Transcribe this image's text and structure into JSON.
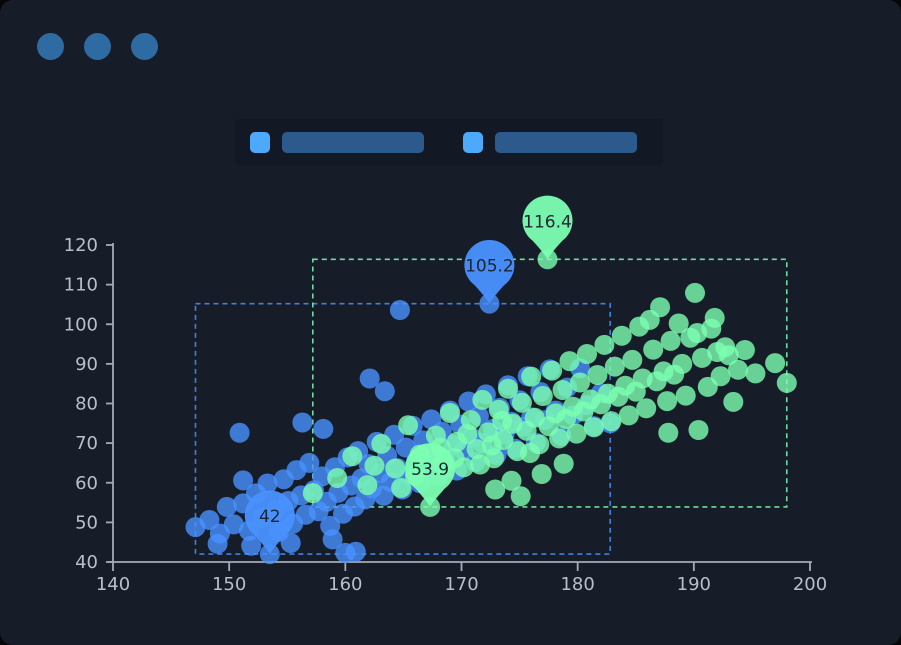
{
  "window": {
    "background": "#171d28",
    "dot_color": "#2f6ba3",
    "dot_count": 3
  },
  "legend": {
    "items": [
      {
        "name": "legend-item-1",
        "swatch_color": "#4da9fc",
        "bar_color": "#2d5a8c"
      },
      {
        "name": "legend-item-2",
        "swatch_color": "#4da9fc",
        "bar_color": "#2d5a8c"
      }
    ]
  },
  "chart_data": {
    "type": "scatter",
    "title": "",
    "xlabel": "",
    "ylabel": "",
    "xlim": [
      140,
      200
    ],
    "ylim": [
      40,
      120
    ],
    "x_ticks": [
      140,
      150,
      160,
      170,
      180,
      190,
      200
    ],
    "y_ticks": [
      40,
      50,
      60,
      70,
      80,
      90,
      100,
      110,
      120
    ],
    "grid": false,
    "legend_position": "top",
    "axis_color": "#a5abb6",
    "tick_label_color": "#b9bfca",
    "pin_label_color": "#1b2534",
    "series": [
      {
        "name": "series-1",
        "color": "#4992ff",
        "bounding_box_dashed": true,
        "marks": [
          {
            "type": "max",
            "label": "105.2",
            "x": 172.4,
            "y": 105.2
          },
          {
            "type": "min",
            "label": "42",
            "x": 153.5,
            "y": 42
          }
        ],
        "points": [
          [
            147.1,
            48.8
          ],
          [
            148.3,
            50.6
          ],
          [
            149.0,
            44.6
          ],
          [
            149.2,
            47.2
          ],
          [
            149.8,
            53.9
          ],
          [
            150.4,
            49.5
          ],
          [
            150.9,
            72.6
          ],
          [
            151.2,
            54.8
          ],
          [
            151.2,
            60.6
          ],
          [
            151.7,
            47.9
          ],
          [
            151.9,
            44.1
          ],
          [
            152.3,
            57.3
          ],
          [
            152.9,
            51.2
          ],
          [
            153.3,
            59.8
          ],
          [
            153.5,
            42.0
          ],
          [
            154.0,
            53.1
          ],
          [
            154.3,
            47.6
          ],
          [
            154.7,
            60.9
          ],
          [
            155.1,
            55.4
          ],
          [
            155.3,
            44.8
          ],
          [
            155.5,
            49.7
          ],
          [
            155.8,
            63.2
          ],
          [
            156.2,
            56.8
          ],
          [
            156.3,
            75.2
          ],
          [
            156.6,
            51.9
          ],
          [
            156.9,
            65.0
          ],
          [
            157.3,
            58.1
          ],
          [
            157.7,
            52.8
          ],
          [
            158.0,
            61.6
          ],
          [
            158.1,
            73.6
          ],
          [
            158.4,
            55.2
          ],
          [
            158.7,
            49.1
          ],
          [
            158.9,
            45.7
          ],
          [
            159.1,
            63.9
          ],
          [
            159.4,
            57.5
          ],
          [
            159.8,
            52.2
          ],
          [
            160.0,
            42.3
          ],
          [
            160.2,
            66.4
          ],
          [
            160.5,
            59.3
          ],
          [
            160.8,
            54.0
          ],
          [
            160.9,
            42.6
          ],
          [
            161.1,
            68.0
          ],
          [
            161.4,
            61.1
          ],
          [
            161.7,
            55.8
          ],
          [
            162.0,
            64.7
          ],
          [
            162.1,
            86.3
          ],
          [
            162.3,
            58.6
          ],
          [
            162.7,
            70.3
          ],
          [
            163.0,
            62.4
          ],
          [
            163.3,
            56.7
          ],
          [
            163.4,
            83.1
          ],
          [
            163.6,
            66.8
          ],
          [
            163.9,
            60.2
          ],
          [
            164.2,
            72.1
          ],
          [
            164.5,
            63.7
          ],
          [
            164.7,
            103.6
          ],
          [
            164.9,
            58.3
          ],
          [
            165.2,
            68.9
          ],
          [
            165.5,
            62.0
          ],
          [
            165.8,
            74.4
          ],
          [
            166.1,
            65.5
          ],
          [
            166.4,
            59.9
          ],
          [
            166.7,
            70.7
          ],
          [
            167.0,
            64.1
          ],
          [
            167.4,
            76.0
          ],
          [
            167.7,
            67.3
          ],
          [
            168.0,
            61.5
          ],
          [
            168.3,
            72.9
          ],
          [
            168.6,
            66.0
          ],
          [
            169.0,
            78.2
          ],
          [
            169.3,
            69.6
          ],
          [
            169.6,
            63.1
          ],
          [
            169.9,
            74.7
          ],
          [
            170.2,
            68.1
          ],
          [
            170.6,
            80.5
          ],
          [
            170.9,
            71.4
          ],
          [
            171.2,
            65.2
          ],
          [
            171.5,
            76.8
          ],
          [
            171.8,
            70.0
          ],
          [
            172.1,
            82.3
          ],
          [
            172.4,
            105.2
          ],
          [
            172.7,
            73.6
          ],
          [
            173.0,
            67.0
          ],
          [
            173.3,
            78.9
          ],
          [
            173.7,
            72.2
          ],
          [
            174.0,
            84.6
          ],
          [
            174.3,
            75.4
          ],
          [
            174.6,
            68.6
          ],
          [
            175.0,
            80.8
          ],
          [
            175.3,
            74.1
          ],
          [
            175.7,
            86.9
          ],
          [
            176.0,
            76.5
          ],
          [
            176.4,
            70.1
          ],
          [
            176.8,
            82.9
          ],
          [
            177.2,
            75.8
          ],
          [
            177.6,
            88.6
          ],
          [
            178.1,
            78.2
          ],
          [
            178.6,
            71.9
          ],
          [
            179.1,
            84.0
          ],
          [
            179.6,
            77.0
          ],
          [
            180.2,
            88.9
          ],
          [
            180.8,
            79.6
          ],
          [
            181.4,
            74.3
          ],
          [
            182.0,
            82.6
          ],
          [
            182.8,
            75.0
          ]
        ]
      },
      {
        "name": "series-2",
        "color": "#7cffb2",
        "bounding_box_dashed": true,
        "marks": [
          {
            "type": "max",
            "label": "116.4",
            "x": 177.4,
            "y": 116.4
          },
          {
            "type": "min",
            "label": "53.9",
            "x": 167.3,
            "y": 53.9
          }
        ],
        "points": [
          [
            157.2,
            57.4
          ],
          [
            159.3,
            61.2
          ],
          [
            160.6,
            66.7
          ],
          [
            161.9,
            59.4
          ],
          [
            162.5,
            64.3
          ],
          [
            163.1,
            69.8
          ],
          [
            164.3,
            63.6
          ],
          [
            164.8,
            58.7
          ],
          [
            165.4,
            74.5
          ],
          [
            166.0,
            61.8
          ],
          [
            166.4,
            67.1
          ],
          [
            167.3,
            53.9
          ],
          [
            167.8,
            71.9
          ],
          [
            168.2,
            68.9
          ],
          [
            168.4,
            64.8
          ],
          [
            169.0,
            77.6
          ],
          [
            169.4,
            66.2
          ],
          [
            169.6,
            70.3
          ],
          [
            170.2,
            63.9
          ],
          [
            170.5,
            72.3
          ],
          [
            170.8,
            75.8
          ],
          [
            171.3,
            68.5
          ],
          [
            171.6,
            64.6
          ],
          [
            171.8,
            80.9
          ],
          [
            172.3,
            72.7
          ],
          [
            172.6,
            69.4
          ],
          [
            172.8,
            66.2
          ],
          [
            172.9,
            58.3
          ],
          [
            173.2,
            78.4
          ],
          [
            173.5,
            75.6
          ],
          [
            173.6,
            70.8
          ],
          [
            174.0,
            83.7
          ],
          [
            174.3,
            60.5
          ],
          [
            174.4,
            74.9
          ],
          [
            174.8,
            68.0
          ],
          [
            175.1,
            56.6
          ],
          [
            175.2,
            80.2
          ],
          [
            175.6,
            73.1
          ],
          [
            175.9,
            67.5
          ],
          [
            176.0,
            86.8
          ],
          [
            176.3,
            76.4
          ],
          [
            176.7,
            69.7
          ],
          [
            176.9,
            62.2
          ],
          [
            177.0,
            81.9
          ],
          [
            177.4,
            116.4
          ],
          [
            177.5,
            74.3
          ],
          [
            177.8,
            88.3
          ],
          [
            178.1,
            77.5
          ],
          [
            178.4,
            71.2
          ],
          [
            178.7,
            83.4
          ],
          [
            178.8,
            64.8
          ],
          [
            179.0,
            76.1
          ],
          [
            179.3,
            90.7
          ],
          [
            179.6,
            79.2
          ],
          [
            179.9,
            72.4
          ],
          [
            180.2,
            85.3
          ],
          [
            180.5,
            78.0
          ],
          [
            180.8,
            92.5
          ],
          [
            181.1,
            81.0
          ],
          [
            181.4,
            74.0
          ],
          [
            181.7,
            87.2
          ],
          [
            182.0,
            79.8
          ],
          [
            182.3,
            94.8
          ],
          [
            182.6,
            82.5
          ],
          [
            182.9,
            75.5
          ],
          [
            183.2,
            89.3
          ],
          [
            183.5,
            81.7
          ],
          [
            183.8,
            97.1
          ],
          [
            184.1,
            84.5
          ],
          [
            184.4,
            77.0
          ],
          [
            184.7,
            91.0
          ],
          [
            185.0,
            83.0
          ],
          [
            185.3,
            99.4
          ],
          [
            185.6,
            86.3
          ],
          [
            185.9,
            78.8
          ],
          [
            186.2,
            101.1
          ],
          [
            186.5,
            93.6
          ],
          [
            186.8,
            85.6
          ],
          [
            187.1,
            104.3
          ],
          [
            187.4,
            88.1
          ],
          [
            187.7,
            80.6
          ],
          [
            187.8,
            72.6
          ],
          [
            188.0,
            95.8
          ],
          [
            188.3,
            87.3
          ],
          [
            188.7,
            100.2
          ],
          [
            189.0,
            90.0
          ],
          [
            189.3,
            82.0
          ],
          [
            189.7,
            96.6
          ],
          [
            190.1,
            107.9
          ],
          [
            190.3,
            97.8
          ],
          [
            190.4,
            73.3
          ],
          [
            190.7,
            91.5
          ],
          [
            191.2,
            84.2
          ],
          [
            191.5,
            98.9
          ],
          [
            191.8,
            101.6
          ],
          [
            192.0,
            93.0
          ],
          [
            192.3,
            86.9
          ],
          [
            192.7,
            94.2
          ],
          [
            193.0,
            92.2
          ],
          [
            193.4,
            80.4
          ],
          [
            193.8,
            88.5
          ],
          [
            194.4,
            93.5
          ],
          [
            195.3,
            87.6
          ],
          [
            197.0,
            90.2
          ],
          [
            198.0,
            85.2
          ]
        ]
      }
    ]
  }
}
